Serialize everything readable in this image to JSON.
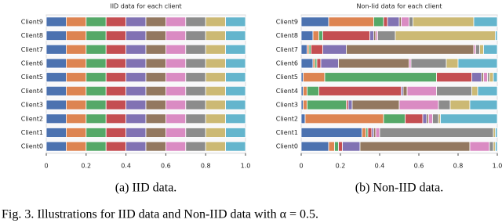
{
  "chart_data": [
    {
      "type": "stacked-bar",
      "title": "IID data for each client",
      "subcaption": "(a) IID data.",
      "categories": [
        "Client0",
        "Client1",
        "Client2",
        "Client3",
        "Client4",
        "Client5",
        "Client6",
        "Client7",
        "Client8",
        "Client9"
      ],
      "series": [
        {
          "color": "#4c72b0",
          "values": [
            0.1,
            0.1,
            0.1,
            0.1,
            0.1,
            0.1,
            0.1,
            0.1,
            0.1,
            0.1
          ]
        },
        {
          "color": "#dd8452",
          "values": [
            0.1,
            0.1,
            0.1,
            0.1,
            0.1,
            0.1,
            0.1,
            0.1,
            0.1,
            0.1
          ]
        },
        {
          "color": "#55a868",
          "values": [
            0.1,
            0.1,
            0.1,
            0.1,
            0.1,
            0.1,
            0.1,
            0.1,
            0.1,
            0.1
          ]
        },
        {
          "color": "#c44e52",
          "values": [
            0.1,
            0.1,
            0.1,
            0.1,
            0.1,
            0.1,
            0.1,
            0.1,
            0.1,
            0.1
          ]
        },
        {
          "color": "#8172b3",
          "values": [
            0.1,
            0.1,
            0.1,
            0.1,
            0.1,
            0.1,
            0.1,
            0.1,
            0.1,
            0.1
          ]
        },
        {
          "color": "#937860",
          "values": [
            0.1,
            0.1,
            0.1,
            0.1,
            0.1,
            0.1,
            0.1,
            0.1,
            0.1,
            0.1
          ]
        },
        {
          "color": "#da8bc3",
          "values": [
            0.1,
            0.1,
            0.1,
            0.1,
            0.1,
            0.1,
            0.1,
            0.1,
            0.1,
            0.1
          ]
        },
        {
          "color": "#8c8c8c",
          "values": [
            0.1,
            0.1,
            0.1,
            0.1,
            0.1,
            0.1,
            0.1,
            0.1,
            0.1,
            0.1
          ]
        },
        {
          "color": "#ccb974",
          "values": [
            0.1,
            0.1,
            0.1,
            0.1,
            0.1,
            0.1,
            0.1,
            0.1,
            0.1,
            0.1
          ]
        },
        {
          "color": "#64b5cd",
          "values": [
            0.1,
            0.1,
            0.1,
            0.1,
            0.1,
            0.1,
            0.1,
            0.1,
            0.1,
            0.1
          ]
        }
      ],
      "xlim": [
        0,
        1
      ],
      "xticks": [
        0,
        0.2,
        0.4,
        0.6,
        0.8,
        {
          "value": 1,
          "label": "1.0"
        }
      ]
    },
    {
      "type": "stacked-bar",
      "title": "Non-Iid data for each client",
      "subcaption": "(b) Non-IID data.",
      "categories": [
        "Client0",
        "Client1",
        "Client2",
        "Client3",
        "Client4",
        "Client5",
        "Client6",
        "Client7",
        "Client8",
        "Client9"
      ],
      "series": [
        {
          "color": "#4c72b0",
          "values": [
            0.14,
            0.31,
            0.02,
            0.01,
            0.01,
            0.01,
            0.06,
            0.03,
            0.06,
            0.14
          ]
        },
        {
          "color": "#dd8452",
          "values": [
            0.03,
            0.02,
            0.4,
            0.02,
            0.02,
            0.11,
            0.01,
            0.01,
            0.03,
            0.23
          ]
        },
        {
          "color": "#55a868",
          "values": [
            0.02,
            0.01,
            0.11,
            0.2,
            0.06,
            0.57,
            0.01,
            0.01,
            0.02,
            0.05
          ]
        },
        {
          "color": "#c44e52",
          "values": [
            0.02,
            0.02,
            0.09,
            0.01,
            0.42,
            0.18,
            0.02,
            0.06,
            0.24,
            0.02
          ]
        },
        {
          "color": "#8172b3",
          "values": [
            0.09,
            0.01,
            0.02,
            0.02,
            0.01,
            0.05,
            0.09,
            0.12,
            0.02,
            0.06
          ]
        },
        {
          "color": "#937860",
          "values": [
            0.56,
            0.01,
            0.01,
            0.24,
            0.02,
            0.01,
            0.36,
            0.65,
            0.01,
            0.01
          ]
        },
        {
          "color": "#da8bc3",
          "values": [
            0.1,
            0.02,
            0.02,
            0.2,
            0.15,
            0.02,
            0.01,
            0.01,
            0.01,
            0.04
          ]
        },
        {
          "color": "#8c8c8c",
          "values": [
            0.02,
            0.58,
            0.03,
            0.06,
            0.18,
            0.01,
            0.18,
            0.02,
            0.09,
            0.02
          ]
        },
        {
          "color": "#ccb974",
          "values": [
            0.01,
            0.01,
            0.01,
            0.1,
            0.03,
            0.02,
            0.06,
            0.02,
            0.51,
            0.31
          ]
        },
        {
          "color": "#64b5cd",
          "values": [
            0.01,
            0.01,
            0.29,
            0.14,
            0.1,
            0.02,
            0.2,
            0.07,
            0.01,
            0.12
          ]
        }
      ],
      "xlim": [
        0,
        1
      ],
      "xticks": [
        0,
        0.2,
        0.4,
        0.6,
        0.8,
        {
          "value": 1,
          "label": "1.0"
        }
      ]
    }
  ],
  "caption": "Fig. 3.  Illustrations for IID data and Non-IID data with α = 0.5."
}
